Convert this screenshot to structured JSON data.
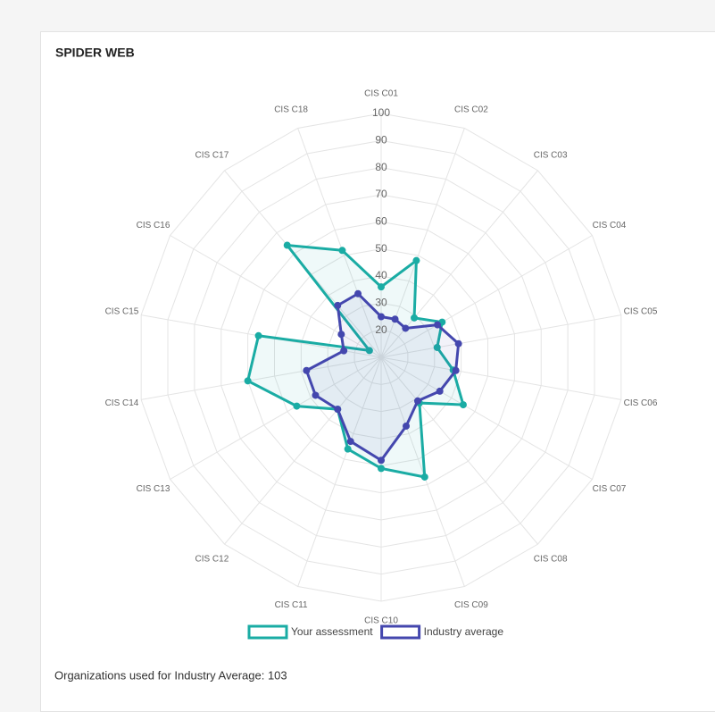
{
  "chart_data": {
    "type": "radar",
    "title": "SPIDER WEB",
    "categories": [
      "CIS C01",
      "CIS C02",
      "CIS C03",
      "CIS C04",
      "CIS C05",
      "CIS C06",
      "CIS C07",
      "CIS C08",
      "CIS C09",
      "CIS C10",
      "CIS C11",
      "CIS C12",
      "CIS C13",
      "CIS C14",
      "CIS C15",
      "CIS C16",
      "CIS C17",
      "CIS C18"
    ],
    "series": [
      {
        "name": "Your assessment",
        "color": "#1aaca4",
        "values": [
          36,
          48,
          29,
          36,
          31,
          37,
          45,
          32,
          57,
          51,
          46,
          35,
          46,
          60,
          56,
          15,
          64,
          52
        ]
      },
      {
        "name": "Industry average",
        "color": "#4447ae",
        "values": [
          25,
          25,
          24,
          34,
          39,
          38,
          35,
          31,
          37,
          48,
          43,
          35,
          38,
          38,
          24,
          27,
          35,
          35
        ]
      }
    ],
    "rlim": [
      10,
      100
    ],
    "rticks": [
      20,
      30,
      40,
      50,
      60,
      70,
      80,
      90,
      100
    ],
    "grid": true,
    "legend": "bottom",
    "footnote": "Organizations used for Industry Average: 103"
  }
}
